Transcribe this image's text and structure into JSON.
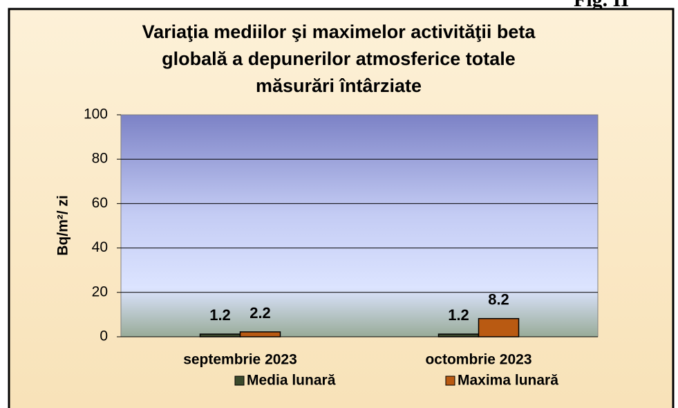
{
  "page_label": "Fig. II",
  "chart_data": {
    "type": "bar",
    "title": [
      "Variaţia mediilor şi maximelor activităţii beta",
      "globală a depunerilor atmosferice totale",
      "măsurări întârziate"
    ],
    "y_label": "Bq/m²/ zi",
    "categories": [
      "septembrie 2023",
      "octombrie 2023"
    ],
    "series": [
      {
        "name": "Media lunară",
        "color": "#3b4a2c",
        "values": [
          1.2,
          1.2
        ]
      },
      {
        "name": "Maxima lunară",
        "color": "#b95a12",
        "values": [
          2.2,
          8.2
        ]
      }
    ],
    "ylim": [
      0,
      100
    ],
    "yticks": [
      0,
      20,
      40,
      60,
      80,
      100
    ],
    "grid": true,
    "legend": "bottom"
  }
}
